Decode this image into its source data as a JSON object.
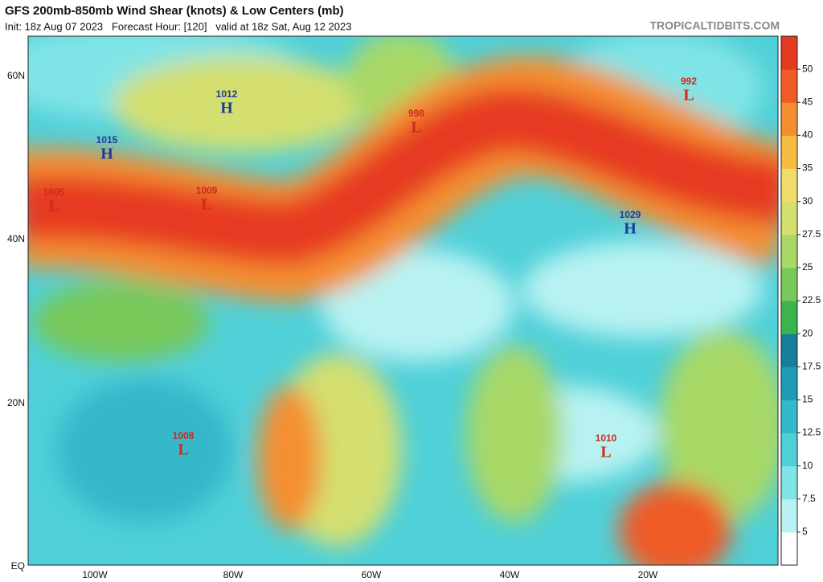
{
  "header": {
    "title": "GFS 200mb-850mb Wind Shear (knots) & Low Centers (mb)",
    "subtitle": "Init: 18z Aug 07 2023   Forecast Hour: [120]   valid at 18z Sat, Aug 12 2023",
    "credit": "TROPICALTIDBITS.COM"
  },
  "map": {
    "lat_labels": [
      "60N",
      "40N",
      "20N",
      "EQ"
    ],
    "lon_labels": [
      "100W",
      "80W",
      "60W",
      "40W",
      "20W"
    ],
    "centers": [
      {
        "kind": "H",
        "pressure": "1012"
      },
      {
        "kind": "H",
        "pressure": "1015"
      },
      {
        "kind": "L",
        "pressure": "1005"
      },
      {
        "kind": "L",
        "pressure": "1009"
      },
      {
        "kind": "L",
        "pressure": "998"
      },
      {
        "kind": "L",
        "pressure": "992"
      },
      {
        "kind": "H",
        "pressure": "1029"
      },
      {
        "kind": "L",
        "pressure": "1008"
      },
      {
        "kind": "L",
        "pressure": "1010"
      }
    ]
  },
  "colorbar": {
    "ticks": [
      5,
      7.5,
      10,
      12.5,
      15,
      17.5,
      20,
      22.5,
      25,
      27.5,
      30,
      35,
      40,
      45,
      50
    ],
    "colors": [
      "#ffffff",
      "#b8f2f2",
      "#80e4e6",
      "#4fd0d8",
      "#34b8ca",
      "#1f9cb4",
      "#177e98",
      "#3cb44c",
      "#78c85a",
      "#a8d866",
      "#d4df70",
      "#f1dc6c",
      "#f4bd42",
      "#f48f30",
      "#ef5c28",
      "#e63a20"
    ]
  }
}
